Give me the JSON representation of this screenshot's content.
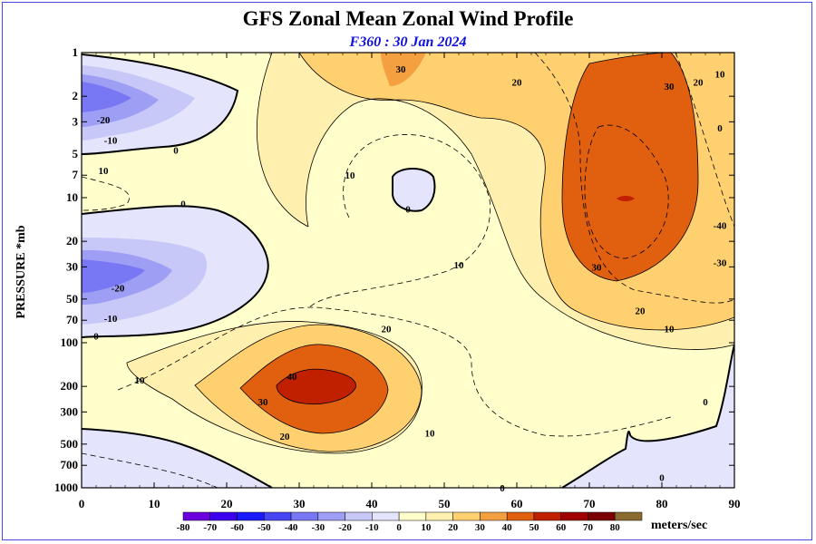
{
  "chart_data": {
    "type": "contour",
    "title": "GFS Zonal Mean Zonal Wind Profile",
    "subtitle": "F360 : 30 Jan 2024",
    "ylabel": "PRESSURE *mb",
    "xlabel": "",
    "x_ticks": [
      "0",
      "10",
      "20",
      "30",
      "40",
      "50",
      "60",
      "70",
      "80",
      "90"
    ],
    "xlim": [
      0,
      90
    ],
    "y_ticks": [
      "1",
      "2",
      "3",
      "5",
      "7",
      "10",
      "20",
      "30",
      "50",
      "70",
      "100",
      "200",
      "300",
      "500",
      "700",
      "1000"
    ],
    "y_tick_values": [
      1,
      2,
      3,
      5,
      7,
      10,
      20,
      30,
      50,
      70,
      100,
      200,
      300,
      500,
      700,
      1000
    ],
    "ylim": [
      1000,
      1
    ],
    "y_scale": "log",
    "units": "meters/sec",
    "colorbar": {
      "levels": [
        "-80",
        "-70",
        "-60",
        "-50",
        "-40",
        "-30",
        "-20",
        "-10",
        "0",
        "10",
        "20",
        "30",
        "40",
        "50",
        "60",
        "70",
        "80"
      ],
      "colors": [
        "#9900cc",
        "#6a00dd",
        "#3c00ee",
        "#1a1aff",
        "#4646f5",
        "#7878f5",
        "#9e9ef5",
        "#c8c8f8",
        "#e4e4fc",
        "#ffffcc",
        "#fff0b0",
        "#ffd070",
        "#f4a040",
        "#e06010",
        "#c02000",
        "#a00000",
        "#7a0000",
        "#8b6a30"
      ]
    },
    "contour_labels": [
      {
        "text": "30",
        "lat": 44,
        "p": 1.3
      },
      {
        "text": "20",
        "lat": 60,
        "p": 1.6
      },
      {
        "text": "30",
        "lat": 81,
        "p": 1.7
      },
      {
        "text": "20",
        "lat": 85,
        "p": 1.6
      },
      {
        "text": "10",
        "lat": 88,
        "p": 1.4
      },
      {
        "text": "0",
        "lat": 88,
        "p": 3.3
      },
      {
        "text": "-20",
        "lat": 3,
        "p": 2.9
      },
      {
        "text": "-10",
        "lat": 4,
        "p": 4.0
      },
      {
        "text": "0",
        "lat": 13,
        "p": 4.7
      },
      {
        "text": "10",
        "lat": 3,
        "p": 6.5
      },
      {
        "text": "10",
        "lat": 37,
        "p": 7.0
      },
      {
        "text": "0",
        "lat": 45,
        "p": 12.0
      },
      {
        "text": "0",
        "lat": 14,
        "p": 11.0
      },
      {
        "text": "-40",
        "lat": 88,
        "p": 15.5
      },
      {
        "text": "-30",
        "lat": 88,
        "p": 28.0
      },
      {
        "text": "30",
        "lat": 71,
        "p": 30.0
      },
      {
        "text": "10",
        "lat": 52,
        "p": 29.0
      },
      {
        "text": "-20",
        "lat": 5,
        "p": 42.0
      },
      {
        "text": "-10",
        "lat": 4,
        "p": 68.0
      },
      {
        "text": "0",
        "lat": 2,
        "p": 90.0
      },
      {
        "text": "20",
        "lat": 77,
        "p": 60.0
      },
      {
        "text": "10",
        "lat": 81,
        "p": 80.0
      },
      {
        "text": "20",
        "lat": 42,
        "p": 80.0
      },
      {
        "text": "10",
        "lat": 8,
        "p": 180.0
      },
      {
        "text": "40",
        "lat": 29,
        "p": 170.0
      },
      {
        "text": "30",
        "lat": 25,
        "p": 255.0
      },
      {
        "text": "20",
        "lat": 28,
        "p": 440.0
      },
      {
        "text": "10",
        "lat": 48,
        "p": 420.0
      },
      {
        "text": "0",
        "lat": 86,
        "p": 255.0
      },
      {
        "text": "0",
        "lat": 80,
        "p": 850.0
      },
      {
        "text": "0",
        "lat": 58,
        "p": 1000.0
      }
    ]
  }
}
